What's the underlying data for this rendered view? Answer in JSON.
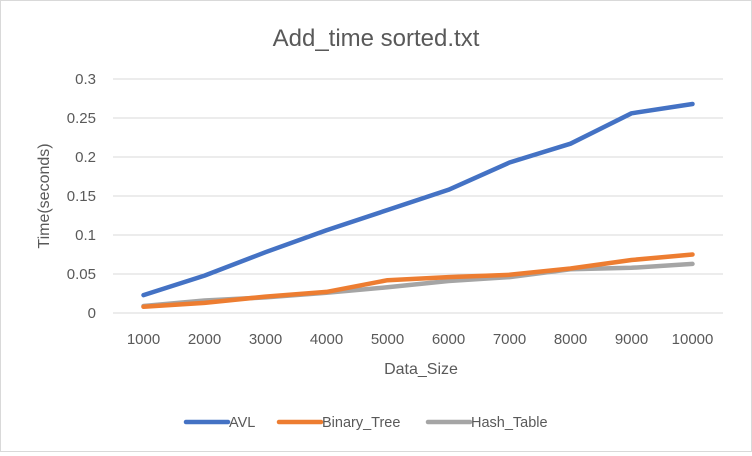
{
  "chart_data": {
    "type": "line",
    "title": "Add_time sorted.txt",
    "xlabel": "Data_Size",
    "ylabel": "Time(seconds)",
    "categories": [
      "1000",
      "2000",
      "3000",
      "4000",
      "5000",
      "6000",
      "7000",
      "8000",
      "9000",
      "10000"
    ],
    "ylim": [
      0,
      0.3
    ],
    "yticks": [
      "0",
      "0.05",
      "0.1",
      "0.15",
      "0.2",
      "0.25",
      "0.3"
    ],
    "grid": true,
    "legend_position": "bottom",
    "series": [
      {
        "name": "AVL",
        "color": "#4472C4",
        "values": [
          0.023,
          0.048,
          0.078,
          0.106,
          0.132,
          0.158,
          0.193,
          0.217,
          0.256,
          0.268
        ]
      },
      {
        "name": "Binary_Tree",
        "color": "#ED7D31",
        "values": [
          0.008,
          0.013,
          0.021,
          0.027,
          0.042,
          0.046,
          0.049,
          0.057,
          0.068,
          0.075
        ]
      },
      {
        "name": "Hash_Table",
        "color": "#A5A5A5",
        "values": [
          0.009,
          0.016,
          0.02,
          0.026,
          0.033,
          0.041,
          0.046,
          0.056,
          0.058,
          0.063
        ]
      }
    ]
  }
}
